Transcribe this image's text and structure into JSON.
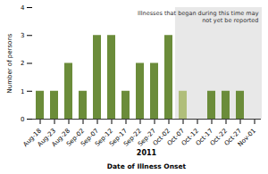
{
  "chart_data": {
    "type": "bar",
    "categories": [
      "Aug-18",
      "Aug-23",
      "Aug-28",
      "Sep-02",
      "Sep-07",
      "Sep-12",
      "Sep-17",
      "Sep-22",
      "Sep-27",
      "Oct-02",
      "Oct-07",
      "Oct-12",
      "Oct-17",
      "Oct-22",
      "Oct-27",
      "Nov-01"
    ],
    "values": [
      1,
      1,
      2,
      1,
      3,
      3,
      1,
      2,
      2,
      3,
      1,
      0,
      1,
      1,
      1,
      0
    ],
    "colors": [
      "#6b8c3a",
      "#6b8c3a",
      "#6b8c3a",
      "#6b8c3a",
      "#6b8c3a",
      "#6b8c3a",
      "#6b8c3a",
      "#6b8c3a",
      "#6b8c3a",
      "#6b8c3a",
      "#b0be7a",
      "#6b8c3a",
      "#6b8c3a",
      "#6b8c3a",
      "#6b8c3a",
      "#6b8c3a"
    ],
    "ylabel": "Number of persons",
    "xlabel": "Date of Illness Onset",
    "subtitle": "2011",
    "annotation": "Illnesses that began during this time may\nnot yet be reported",
    "shade": {
      "from": "Oct-07",
      "color": "#e8e8e8"
    },
    "ylim": [
      0,
      4
    ],
    "yticks": [
      0,
      1,
      2,
      3,
      4
    ]
  }
}
